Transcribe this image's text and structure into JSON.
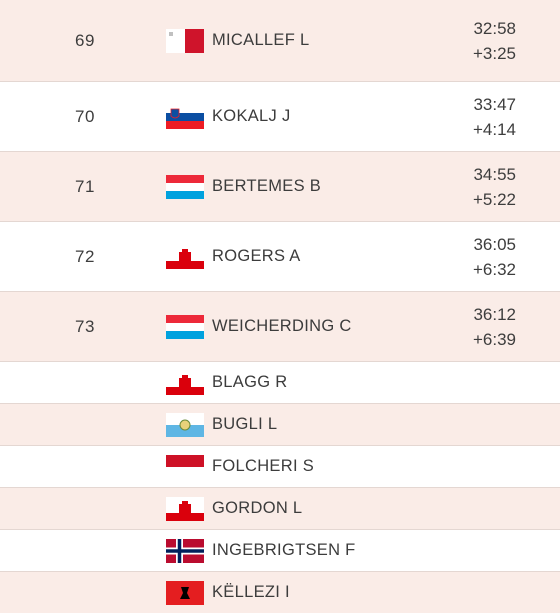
{
  "results": [
    {
      "rank": "69",
      "flag": "malta-flag-icon",
      "name": "MICALLEF L",
      "time": "32:58",
      "gap": "+3:25"
    },
    {
      "rank": "70",
      "flag": "slovenia-flag-icon",
      "name": "KOKALJ J",
      "time": "33:47",
      "gap": "+4:14"
    },
    {
      "rank": "71",
      "flag": "luxembourg-flag-icon",
      "name": "BERTEMES B",
      "time": "34:55",
      "gap": "+5:22"
    },
    {
      "rank": "72",
      "flag": "gibraltar-flag-icon",
      "name": "ROGERS A",
      "time": "36:05",
      "gap": "+6:32"
    },
    {
      "rank": "73",
      "flag": "luxembourg-flag-icon",
      "name": "WEICHERDING C",
      "time": "36:12",
      "gap": "+6:39"
    }
  ],
  "unranked": [
    {
      "flag": "gibraltar-flag-icon",
      "name": "BLAGG R"
    },
    {
      "flag": "san-marino-flag-icon",
      "name": "BUGLI L"
    },
    {
      "flag": "monaco-flag-icon",
      "name": "FOLCHERI S"
    },
    {
      "flag": "gibraltar-flag-icon",
      "name": "GORDON L"
    },
    {
      "flag": "norway-flag-icon",
      "name": "INGEBRIGTSEN F"
    },
    {
      "flag": "albania-flag-icon",
      "name": "KËLLEZI I"
    }
  ],
  "colors": {
    "row_tint": "#faece7",
    "divider": "#e4d7d2",
    "text": "#3c3c3c"
  }
}
